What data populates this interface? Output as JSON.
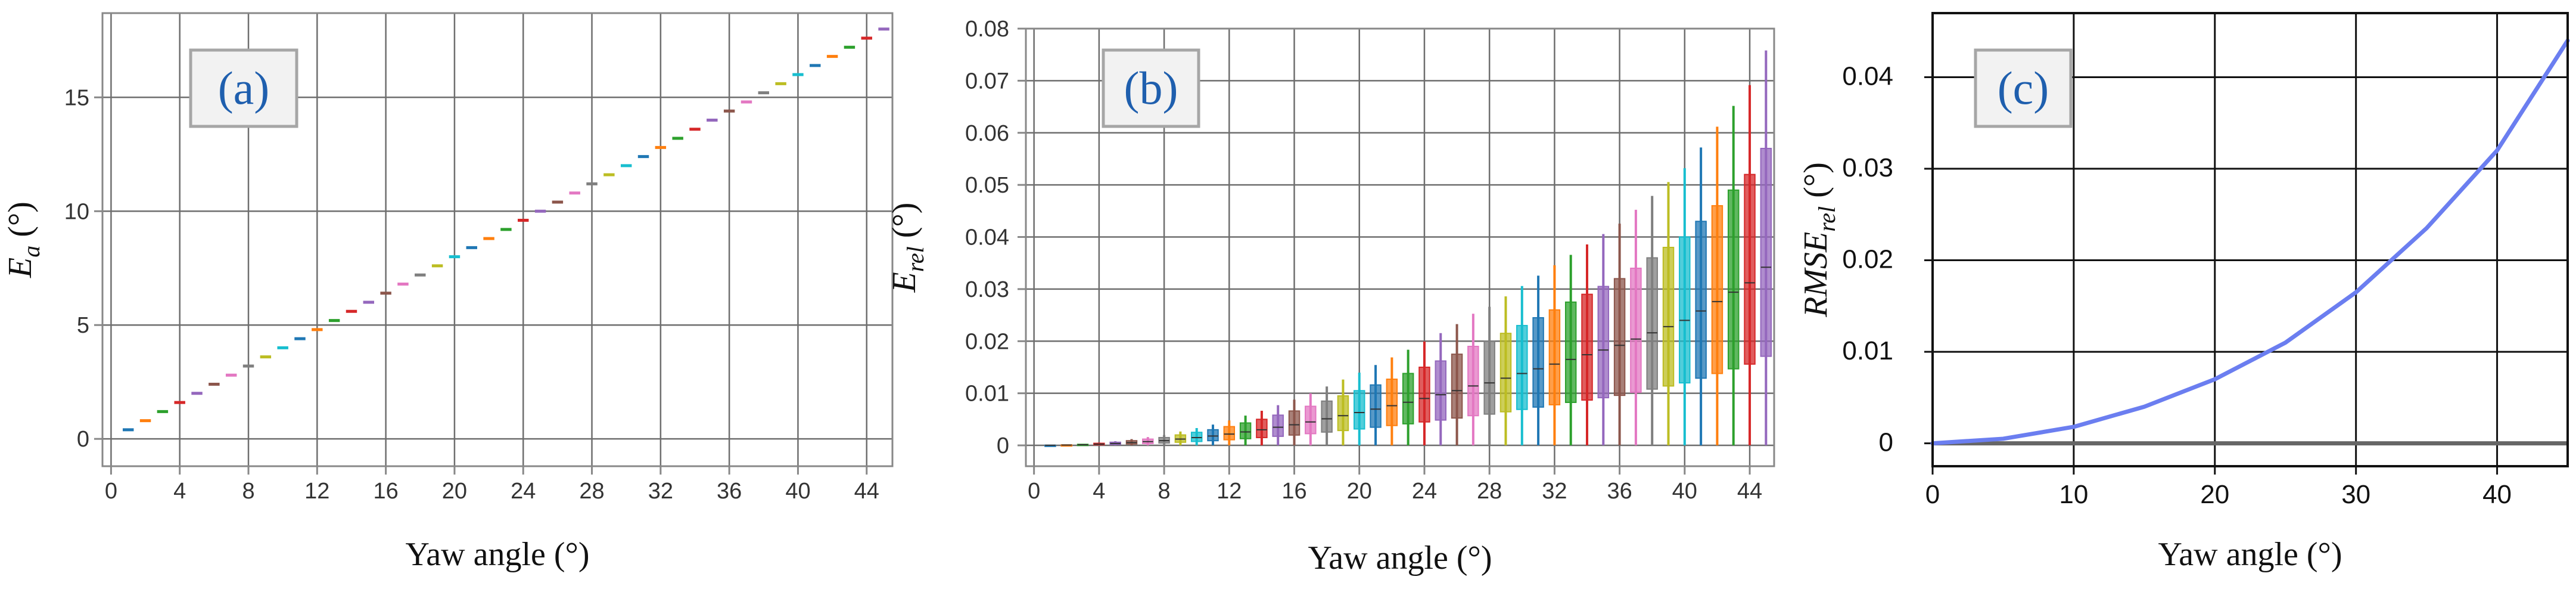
{
  "chart_data": [
    {
      "id": "a",
      "panel_label": "(a)",
      "type": "bar",
      "style": "horizontal dash marker per category",
      "xlabel": "Yaw angle (°)",
      "ylabel_base": "E",
      "ylabel_sub": "a",
      "ylabel_unit": " (°)",
      "xlim": [
        -0.5,
        45.5
      ],
      "ylim": [
        -1.2,
        18.7
      ],
      "xticks": [
        "0",
        "4",
        "8",
        "12",
        "16",
        "20",
        "24",
        "28",
        "32",
        "36",
        "40",
        "44"
      ],
      "yticks": [
        "0",
        "5",
        "10",
        "15"
      ],
      "x": [
        1,
        2,
        3,
        4,
        5,
        6,
        7,
        8,
        9,
        10,
        11,
        12,
        13,
        14,
        15,
        16,
        17,
        18,
        19,
        20,
        21,
        22,
        23,
        24,
        25,
        26,
        27,
        28,
        29,
        30,
        31,
        32,
        33,
        34,
        35,
        36,
        37,
        38,
        39,
        40,
        41,
        42,
        43,
        44,
        45
      ],
      "values": [
        0.4,
        0.8,
        1.2,
        1.6,
        2.0,
        2.4,
        2.8,
        3.2,
        3.6,
        4.0,
        4.4,
        4.8,
        5.2,
        5.6,
        6.0,
        6.4,
        6.8,
        7.2,
        7.6,
        8.0,
        8.4,
        8.8,
        9.2,
        9.6,
        10.0,
        10.4,
        10.8,
        11.2,
        11.6,
        12.0,
        12.4,
        12.8,
        13.2,
        13.6,
        14.0,
        14.4,
        14.8,
        15.2,
        15.6,
        16.0,
        16.4,
        16.8,
        17.2,
        17.6,
        18.0
      ],
      "grid": true,
      "legend": "none"
    },
    {
      "id": "b",
      "panel_label": "(b)",
      "type": "box",
      "xlabel": "Yaw angle (°)",
      "ylabel_base": "E",
      "ylabel_sub": "rel",
      "ylabel_unit": " (°)",
      "xlim": [
        -0.5,
        45.5
      ],
      "ylim": [
        -0.004,
        0.08
      ],
      "xticks": [
        "0",
        "4",
        "8",
        "12",
        "16",
        "20",
        "24",
        "28",
        "32",
        "36",
        "40",
        "44"
      ],
      "yticks": [
        "0",
        "0.01",
        "0.02",
        "0.03",
        "0.04",
        "0.05",
        "0.06",
        "0.07",
        "0.08"
      ],
      "x": [
        1,
        2,
        3,
        4,
        5,
        6,
        7,
        8,
        9,
        10,
        11,
        12,
        13,
        14,
        15,
        16,
        17,
        18,
        19,
        20,
        21,
        22,
        23,
        24,
        25,
        26,
        27,
        28,
        29,
        30,
        31,
        32,
        33,
        34,
        35,
        36,
        37,
        38,
        39,
        40,
        41,
        42,
        43,
        44,
        45
      ],
      "box_rule": "median = q3 * 0.6, q1 = q3 * 0.3, whisker_high = q3 * 1.33, whisker_low = 0",
      "q3": [
        3e-05,
        0.0001,
        0.0002,
        0.0004,
        0.0006,
        0.0009,
        0.0012,
        0.0015,
        0.002,
        0.0025,
        0.003,
        0.0036,
        0.0043,
        0.005,
        0.0058,
        0.0066,
        0.0075,
        0.0085,
        0.0095,
        0.0105,
        0.0116,
        0.0127,
        0.0138,
        0.015,
        0.0162,
        0.0175,
        0.019,
        0.02,
        0.0215,
        0.023,
        0.0245,
        0.026,
        0.0275,
        0.029,
        0.0305,
        0.032,
        0.034,
        0.036,
        0.038,
        0.04,
        0.043,
        0.046,
        0.049,
        0.052,
        0.057
      ],
      "grid": true,
      "legend": "none"
    },
    {
      "id": "c",
      "panel_label": "(c)",
      "type": "line",
      "xlabel": "Yaw angle (°)",
      "ylabel_base": "RMSE",
      "ylabel_sub": "rel",
      "ylabel_unit": " (°)",
      "xlim": [
        0,
        45
      ],
      "ylim": [
        -0.0025,
        0.047
      ],
      "xticks": [
        "0",
        "10",
        "20",
        "30",
        "40"
      ],
      "xtick_values": [
        0,
        10,
        20,
        30,
        40
      ],
      "yticks": [
        "0",
        "0.01",
        "0.02",
        "0.03",
        "0.04"
      ],
      "ytick_values": [
        0,
        0.01,
        0.02,
        0.03,
        0.04
      ],
      "x": [
        0,
        5,
        10,
        15,
        20,
        25,
        30,
        35,
        40,
        45
      ],
      "values": [
        0.0,
        0.0005,
        0.0018,
        0.004,
        0.007,
        0.011,
        0.0165,
        0.0235,
        0.032,
        0.044
      ],
      "color": "#6b7ef0",
      "grid": true,
      "legend": "none"
    }
  ],
  "colors": [
    "#1f77b4",
    "#ff7f0e",
    "#2ca02c",
    "#d62728",
    "#9467bd",
    "#8c564b",
    "#e377c2",
    "#7f7f7f",
    "#bcbd22",
    "#17becf"
  ]
}
